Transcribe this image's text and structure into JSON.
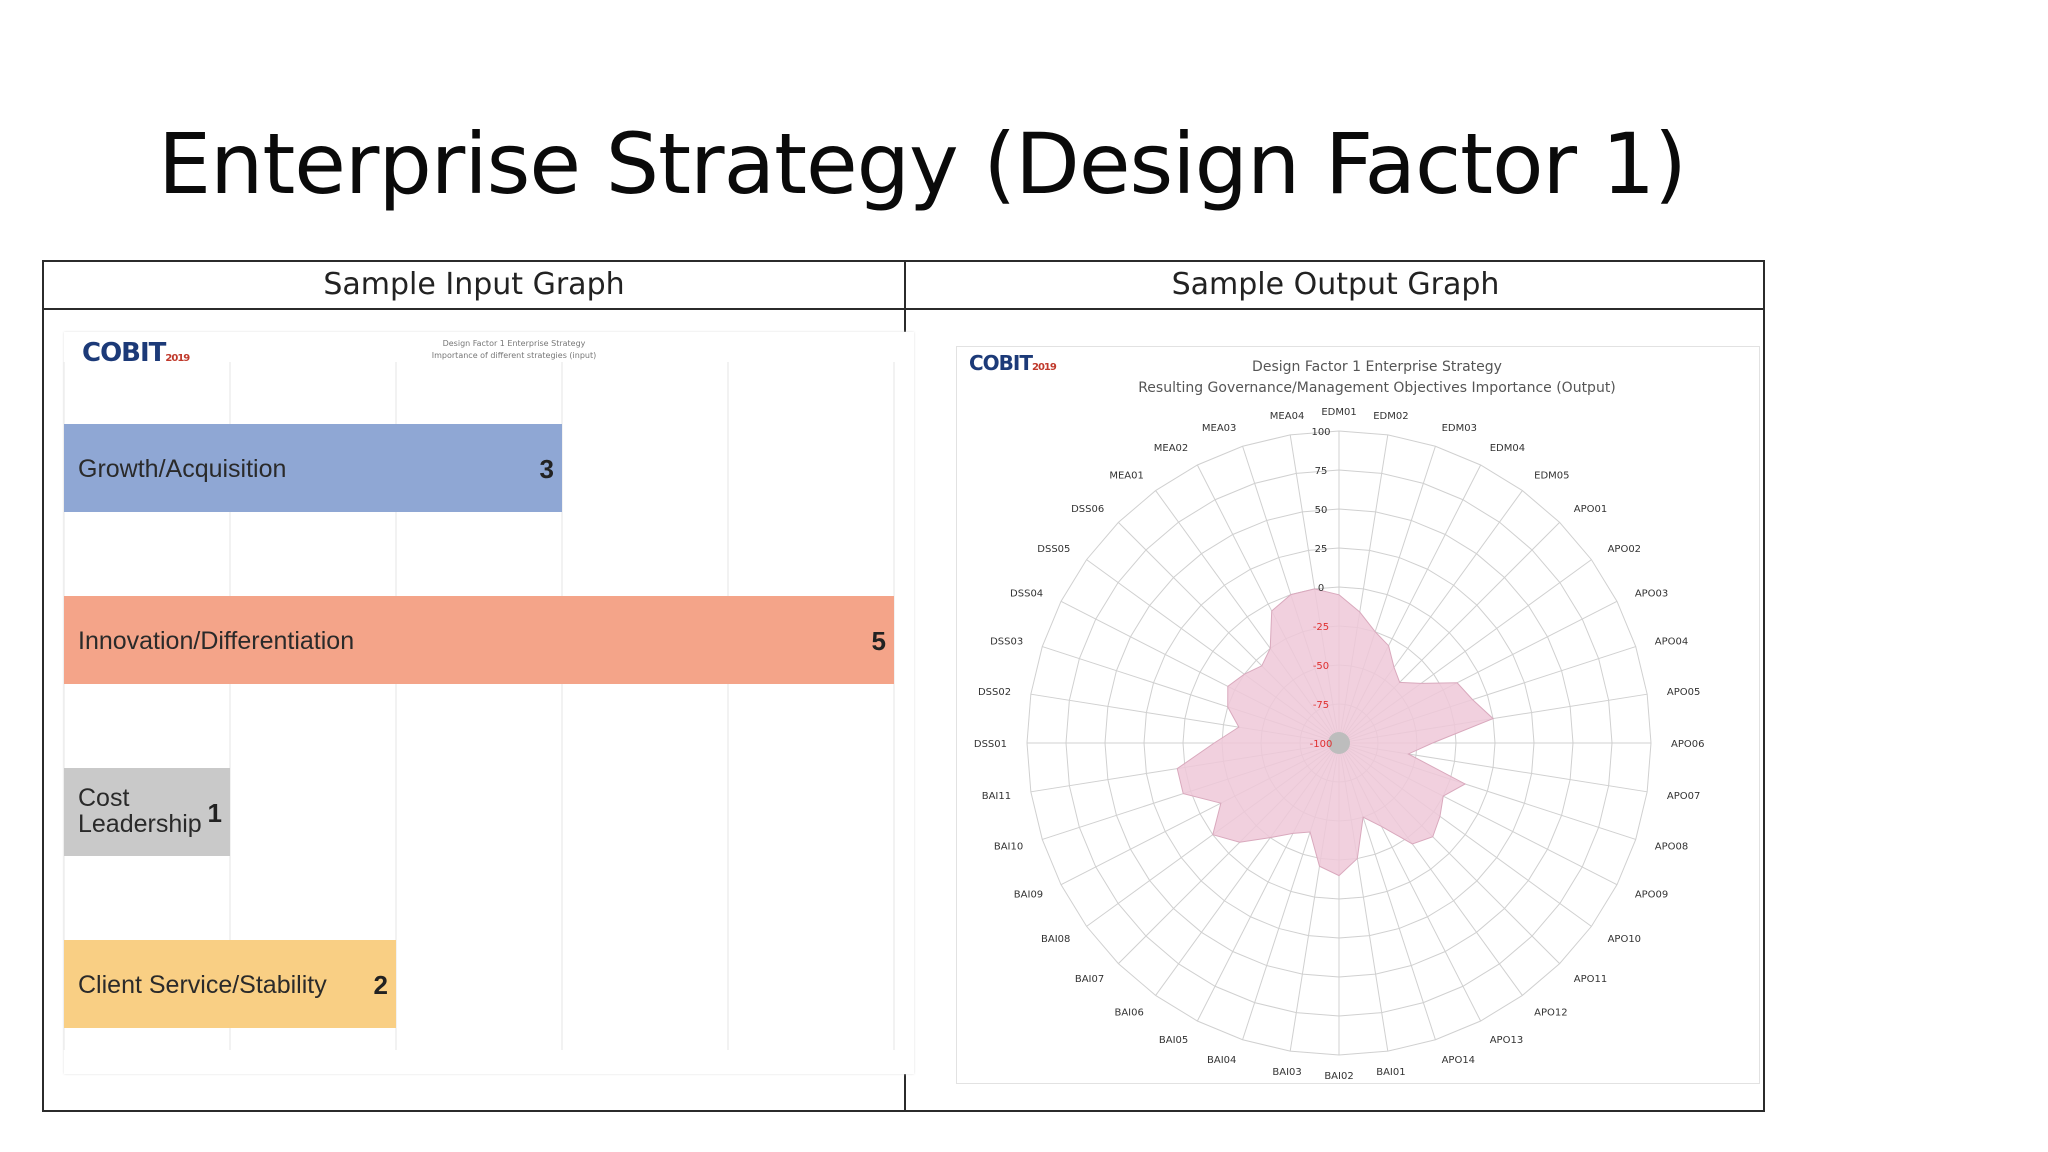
{
  "slide_title": "Enterprise Strategy (Design Factor 1)",
  "table": {
    "left_header": "Sample Input Graph",
    "right_header": "Sample Output Graph"
  },
  "input_panel": {
    "logo_text": "COBIT",
    "logo_year": "2019",
    "title_line1": "Design Factor 1 Enterprise Strategy",
    "title_line2": "Importance of different strategies (input)"
  },
  "output_panel": {
    "logo_text": "COBIT",
    "logo_year": "2019",
    "title_line1": "Design Factor 1 Enterprise Strategy",
    "title_line2": "Resulting Governance/Management Objectives Importance (Output)"
  },
  "colors": {
    "growth": "#8fa7d4",
    "innovation": "#f4a489",
    "cost": "#c9c9c9",
    "client": "#f9cf84",
    "radar_fill": "#efc8d8",
    "radar_stroke": "#d9a9bd",
    "grid": "#d0d0d0",
    "negative_ring": "#e03030"
  },
  "chart_data": [
    {
      "type": "bar",
      "orientation": "horizontal",
      "categories": [
        "Growth/Acquisition",
        "Innovation/Differentiation",
        "Cost Leadership",
        "Client Service/Stability"
      ],
      "category_lines": [
        [
          "Growth/Acquisition"
        ],
        [
          "Innovation/Differentiation"
        ],
        [
          "Cost",
          "Leadership"
        ],
        [
          "Client Service/Stability"
        ]
      ],
      "values": [
        3,
        5,
        1,
        2
      ],
      "xlim": [
        0,
        5
      ]
    },
    {
      "type": "radar",
      "rlim": [
        -100,
        100
      ],
      "ring_ticks": [
        100,
        75,
        50,
        25,
        0,
        -25,
        -50,
        -75,
        -100
      ],
      "ring_labels": [
        "100",
        "75",
        "50",
        "25",
        "0",
        "-25",
        "-50",
        "-75",
        "-100"
      ],
      "categories": [
        "EDM01",
        "EDM02",
        "EDM03",
        "EDM04",
        "EDM05",
        "APO01",
        "APO02",
        "APO03",
        "APO04",
        "APO05",
        "APO06",
        "APO07",
        "APO08",
        "APO09",
        "APO10",
        "APO11",
        "APO12",
        "APO13",
        "APO14",
        "BAI01",
        "BAI02",
        "BAI03",
        "BAI04",
        "BAI05",
        "BAI06",
        "BAI07",
        "BAI08",
        "BAI09",
        "BAI10",
        "BAI11",
        "DSS01",
        "DSS02",
        "DSS03",
        "DSS04",
        "DSS05",
        "DSS06",
        "MEA01",
        "MEA02",
        "MEA03",
        "MEA04"
      ],
      "values": [
        -5,
        -15,
        -25,
        -30,
        -40,
        -45,
        -35,
        -15,
        -10,
        0,
        -40,
        -55,
        -15,
        -25,
        -20,
        -15,
        -20,
        -40,
        -50,
        -25,
        -15,
        -20,
        -40,
        -35,
        -25,
        -10,
        0,
        -15,
        5,
        5,
        -20,
        -35,
        -25,
        -20,
        -25,
        -30,
        -25,
        -5,
        0,
        0
      ]
    }
  ]
}
